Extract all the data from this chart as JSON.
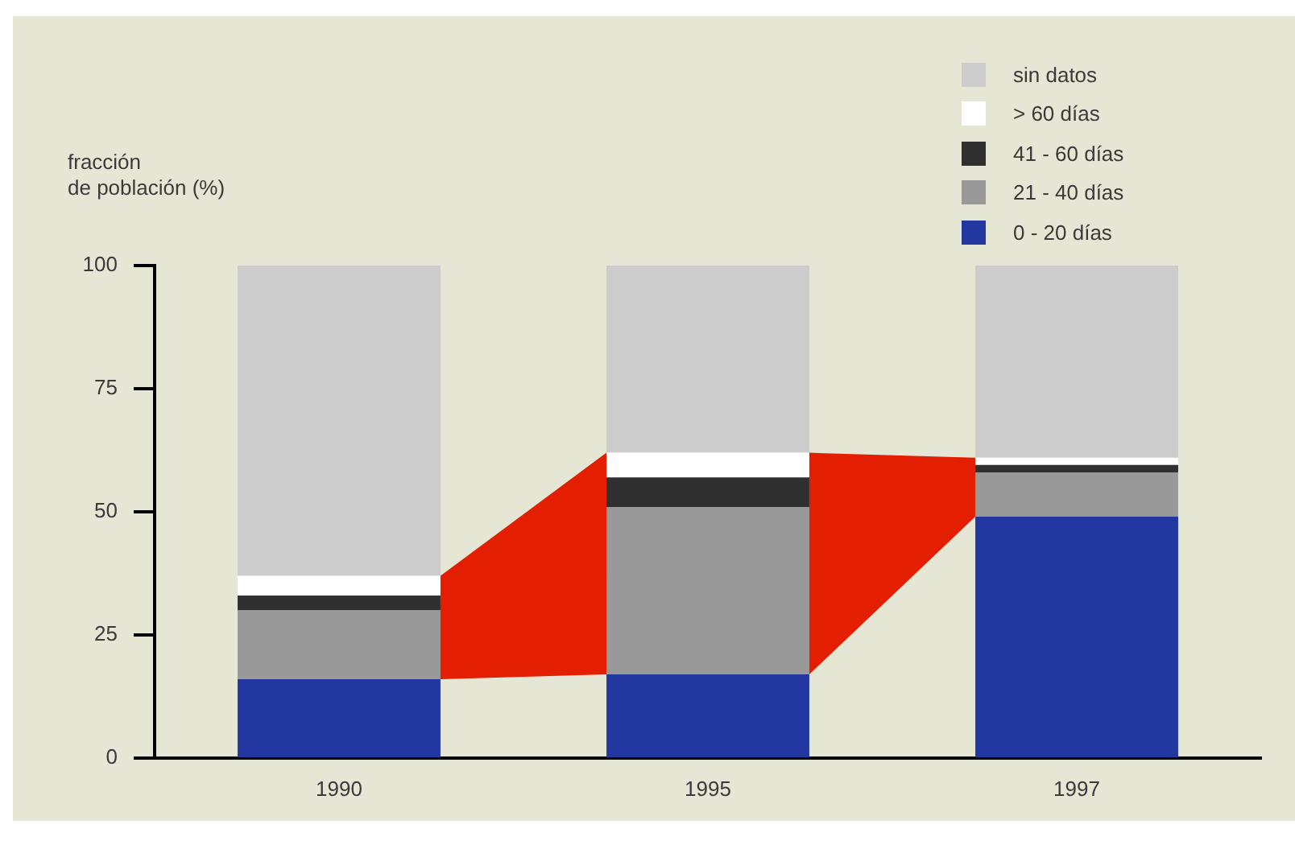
{
  "chart_data": {
    "type": "bar",
    "stacked": true,
    "ylabel": "fracción\nde población (%)",
    "categories": [
      "1990",
      "1995",
      "1997"
    ],
    "series": [
      {
        "name": "0 - 20 días",
        "color": "#2238a0",
        "values": [
          16,
          17,
          49
        ]
      },
      {
        "name": "21 - 40 días",
        "color": "#999999",
        "values": [
          14,
          34,
          9
        ]
      },
      {
        "name": "41 - 60 días",
        "color": "#303030",
        "values": [
          3,
          6,
          1.5
        ]
      },
      {
        "name": "> 60 días",
        "color": "#ffffff",
        "values": [
          4,
          5,
          1.5
        ]
      },
      {
        "name": "sin datos",
        "color": "#cccccc",
        "values": [
          63,
          38,
          39
        ]
      }
    ],
    "ylim": [
      0,
      100
    ],
    "yticks": [
      0,
      25,
      50,
      75,
      100
    ],
    "grid": false,
    "legend": "top right"
  }
}
